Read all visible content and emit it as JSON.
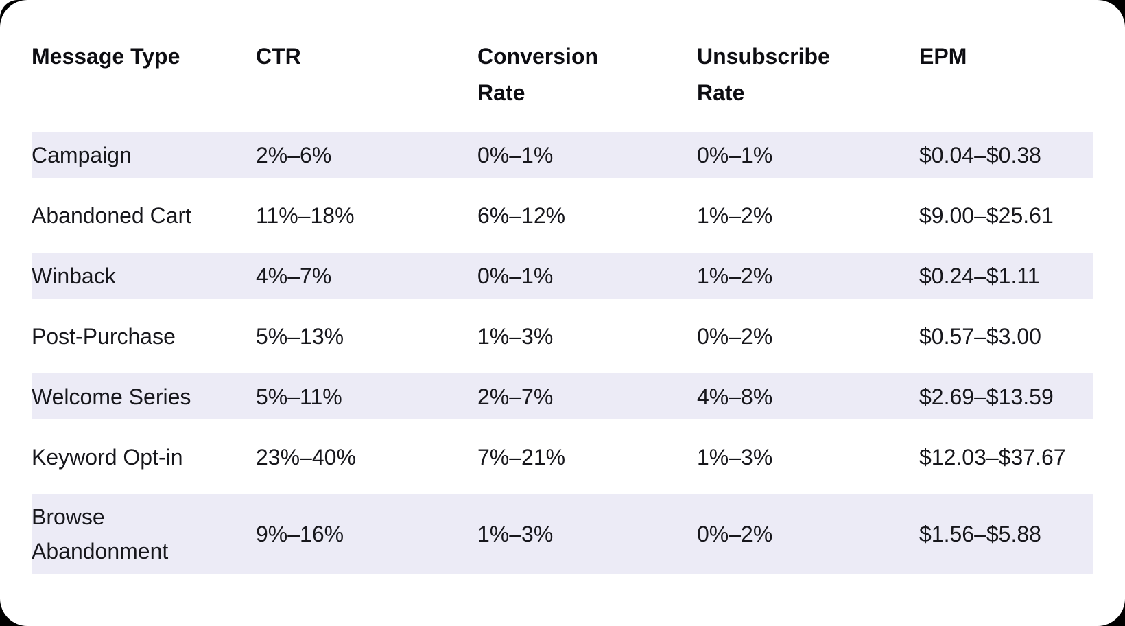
{
  "colors": {
    "page_background": "#000000",
    "card_background": "#FFFFFF",
    "row_stripe": "#ECEBF6",
    "header_text": "#0D0D12",
    "body_text": "#17171C"
  },
  "chart_data": {
    "type": "table",
    "title": "",
    "columns": [
      "Message Type",
      "CTR",
      "Conversion Rate",
      "Unsubscribe Rate",
      "EPM"
    ],
    "rows": [
      {
        "message_type": "Campaign",
        "ctr": "2%–6%",
        "conversion_rate": "0%–1%",
        "unsubscribe_rate": "0%–1%",
        "epm": "$0.04–$0.38"
      },
      {
        "message_type": "Abandoned Cart",
        "ctr": "11%–18%",
        "conversion_rate": "6%–12%",
        "unsubscribe_rate": "1%–2%",
        "epm": "$9.00–$25.61"
      },
      {
        "message_type": "Winback",
        "ctr": "4%–7%",
        "conversion_rate": "0%–1%",
        "unsubscribe_rate": "1%–2%",
        "epm": "$0.24–$1.11"
      },
      {
        "message_type": "Post-Purchase",
        "ctr": "5%–13%",
        "conversion_rate": "1%–3%",
        "unsubscribe_rate": "0%–2%",
        "epm": "$0.57–$3.00"
      },
      {
        "message_type": "Welcome Series",
        "ctr": "5%–11%",
        "conversion_rate": "2%–7%",
        "unsubscribe_rate": "4%–8%",
        "epm": "$2.69–$13.59"
      },
      {
        "message_type": "Keyword Opt-in",
        "ctr": "23%–40%",
        "conversion_rate": "7%–21%",
        "unsubscribe_rate": "1%–3%",
        "epm": "$12.03–$37.67"
      },
      {
        "message_type": "Browse Abandonment",
        "ctr": "9%–16%",
        "conversion_rate": "1%–3%",
        "unsubscribe_rate": "0%–2%",
        "epm": "$1.56–$5.88"
      }
    ]
  }
}
